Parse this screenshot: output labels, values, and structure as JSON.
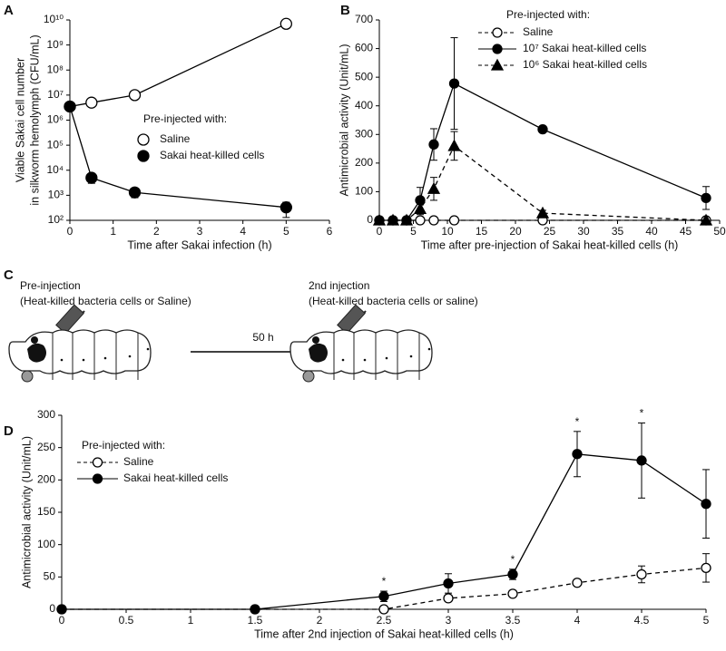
{
  "chart_data": [
    {
      "type": "line",
      "panel": "A",
      "ylabel": [
        "Viable Sakai cell number",
        "in silkworm hemolymph (CFU/mL)"
      ],
      "xlabel": "Time after Sakai infection (h)",
      "log": true,
      "xlim": [
        0,
        6
      ],
      "xticks": [
        0,
        1,
        2,
        3,
        4,
        5,
        6
      ],
      "ylim": [
        100,
        10000000000
      ],
      "yticks": [
        {
          "value": 100,
          "label": "10²"
        },
        {
          "value": 1000,
          "label": "10³"
        },
        {
          "value": 10000,
          "label": "10⁴"
        },
        {
          "value": 100000,
          "label": "10⁵"
        },
        {
          "value": 1000000,
          "label": "10⁶"
        },
        {
          "value": 10000000,
          "label": "10⁷"
        },
        {
          "value": 100000000,
          "label": "10⁸"
        },
        {
          "value": 1000000000,
          "label": "10⁹"
        },
        {
          "value": 10000000000,
          "label": "10¹⁰"
        }
      ],
      "legend_title": "Pre-injected with:",
      "series": [
        {
          "name": "Saline",
          "color": "#000000",
          "marker": "circle",
          "filled": false,
          "dashed": false,
          "x": [
            0,
            0.5,
            1.5,
            5
          ],
          "values": [
            3500000,
            5000000,
            10000000,
            7000000000
          ]
        },
        {
          "name": "Sakai heat-killed cells",
          "color": "#000000",
          "marker": "circle",
          "filled": true,
          "dashed": false,
          "x": [
            0,
            0.5,
            1.5,
            5
          ],
          "values": [
            3500000,
            5000,
            1300,
            330
          ],
          "errors": [
            0,
            2000,
            500,
            200
          ]
        }
      ]
    },
    {
      "type": "line",
      "panel": "B",
      "ylabel": "Antimicrobial activity (Unit/mL)",
      "xlabel": "Time after pre-injection of Sakai heat-killed cells (h)",
      "log": false,
      "xlim": [
        0,
        50
      ],
      "xticks": [
        0,
        5,
        10,
        15,
        20,
        25,
        30,
        35,
        40,
        45,
        50
      ],
      "ylim": [
        0,
        700
      ],
      "yticks": [
        0,
        100,
        200,
        300,
        400,
        500,
        600,
        700
      ],
      "legend_title": "Pre-injected with:",
      "series": [
        {
          "name": "Saline",
          "color": "#000000",
          "marker": "circle",
          "filled": false,
          "dashed": true,
          "x": [
            0,
            2,
            4,
            6,
            8,
            11,
            24,
            48
          ],
          "values": [
            0,
            0,
            0,
            0,
            0,
            0,
            0,
            0
          ]
        },
        {
          "name": "10⁷ Sakai heat-killed cells",
          "color": "#000000",
          "marker": "circle",
          "filled": true,
          "dashed": false,
          "x": [
            0,
            2,
            4,
            6,
            8,
            11,
            24,
            48
          ],
          "values": [
            0,
            0,
            0,
            70,
            265,
            478,
            318,
            78
          ],
          "errors": [
            0,
            0,
            0,
            45,
            55,
            160,
            5,
            40
          ]
        },
        {
          "name": "10⁶ Sakai heat-killed cells",
          "color": "#000000",
          "marker": "triangle",
          "filled": true,
          "dashed": true,
          "x": [
            0,
            2,
            4,
            6,
            8,
            11,
            24,
            48
          ],
          "values": [
            0,
            0,
            0,
            40,
            110,
            260,
            25,
            0
          ],
          "errors": [
            0,
            0,
            0,
            20,
            40,
            50,
            10,
            0
          ]
        }
      ]
    },
    {
      "type": "line",
      "panel": "D",
      "ylabel": "Antimicrobial activity (Unit/mL)",
      "xlabel": "Time after 2nd injection of Sakai heat-killed cells (h)",
      "log": false,
      "xlim": [
        0,
        5
      ],
      "xticks": [
        0,
        0.5,
        1,
        1.5,
        2,
        2.5,
        3,
        3.5,
        4,
        4.5,
        5
      ],
      "ylim": [
        0,
        300
      ],
      "yticks": [
        0,
        50,
        100,
        150,
        200,
        250,
        300
      ],
      "legend_title": "Pre-injected with:",
      "series": [
        {
          "name": "Saline",
          "color": "#000000",
          "marker": "circle",
          "filled": false,
          "dashed": true,
          "x": [
            0,
            1.5,
            2.5,
            3,
            3.5,
            4,
            4.5,
            5
          ],
          "values": [
            0,
            0,
            0,
            17,
            24,
            41,
            54,
            64
          ],
          "errors": [
            0,
            0,
            0,
            0,
            0,
            0,
            13,
            22
          ]
        },
        {
          "name": "Sakai heat-killed cells",
          "color": "#000000",
          "marker": "circle",
          "filled": true,
          "dashed": false,
          "x": [
            0,
            1.5,
            2.5,
            3,
            3.5,
            4,
            4.5,
            5
          ],
          "values": [
            0,
            0,
            20,
            40,
            54,
            240,
            230,
            163
          ],
          "errors": [
            0,
            0,
            8,
            15,
            8,
            35,
            58,
            53
          ]
        }
      ],
      "annotations": [
        {
          "x": 2.5,
          "text": "*"
        },
        {
          "x": 3.5,
          "text": "*"
        },
        {
          "x": 4,
          "text": "*"
        },
        {
          "x": 4.5,
          "text": "*"
        }
      ]
    }
  ],
  "diagram": {
    "panel": "C",
    "left_title": "Pre-injection",
    "left_note": "(Heat-killed bacteria cells or Saline)",
    "arrow_label": "50 h",
    "right_title": "2nd injection",
    "right_note": "(Heat-killed bacteria cells or saline)"
  }
}
